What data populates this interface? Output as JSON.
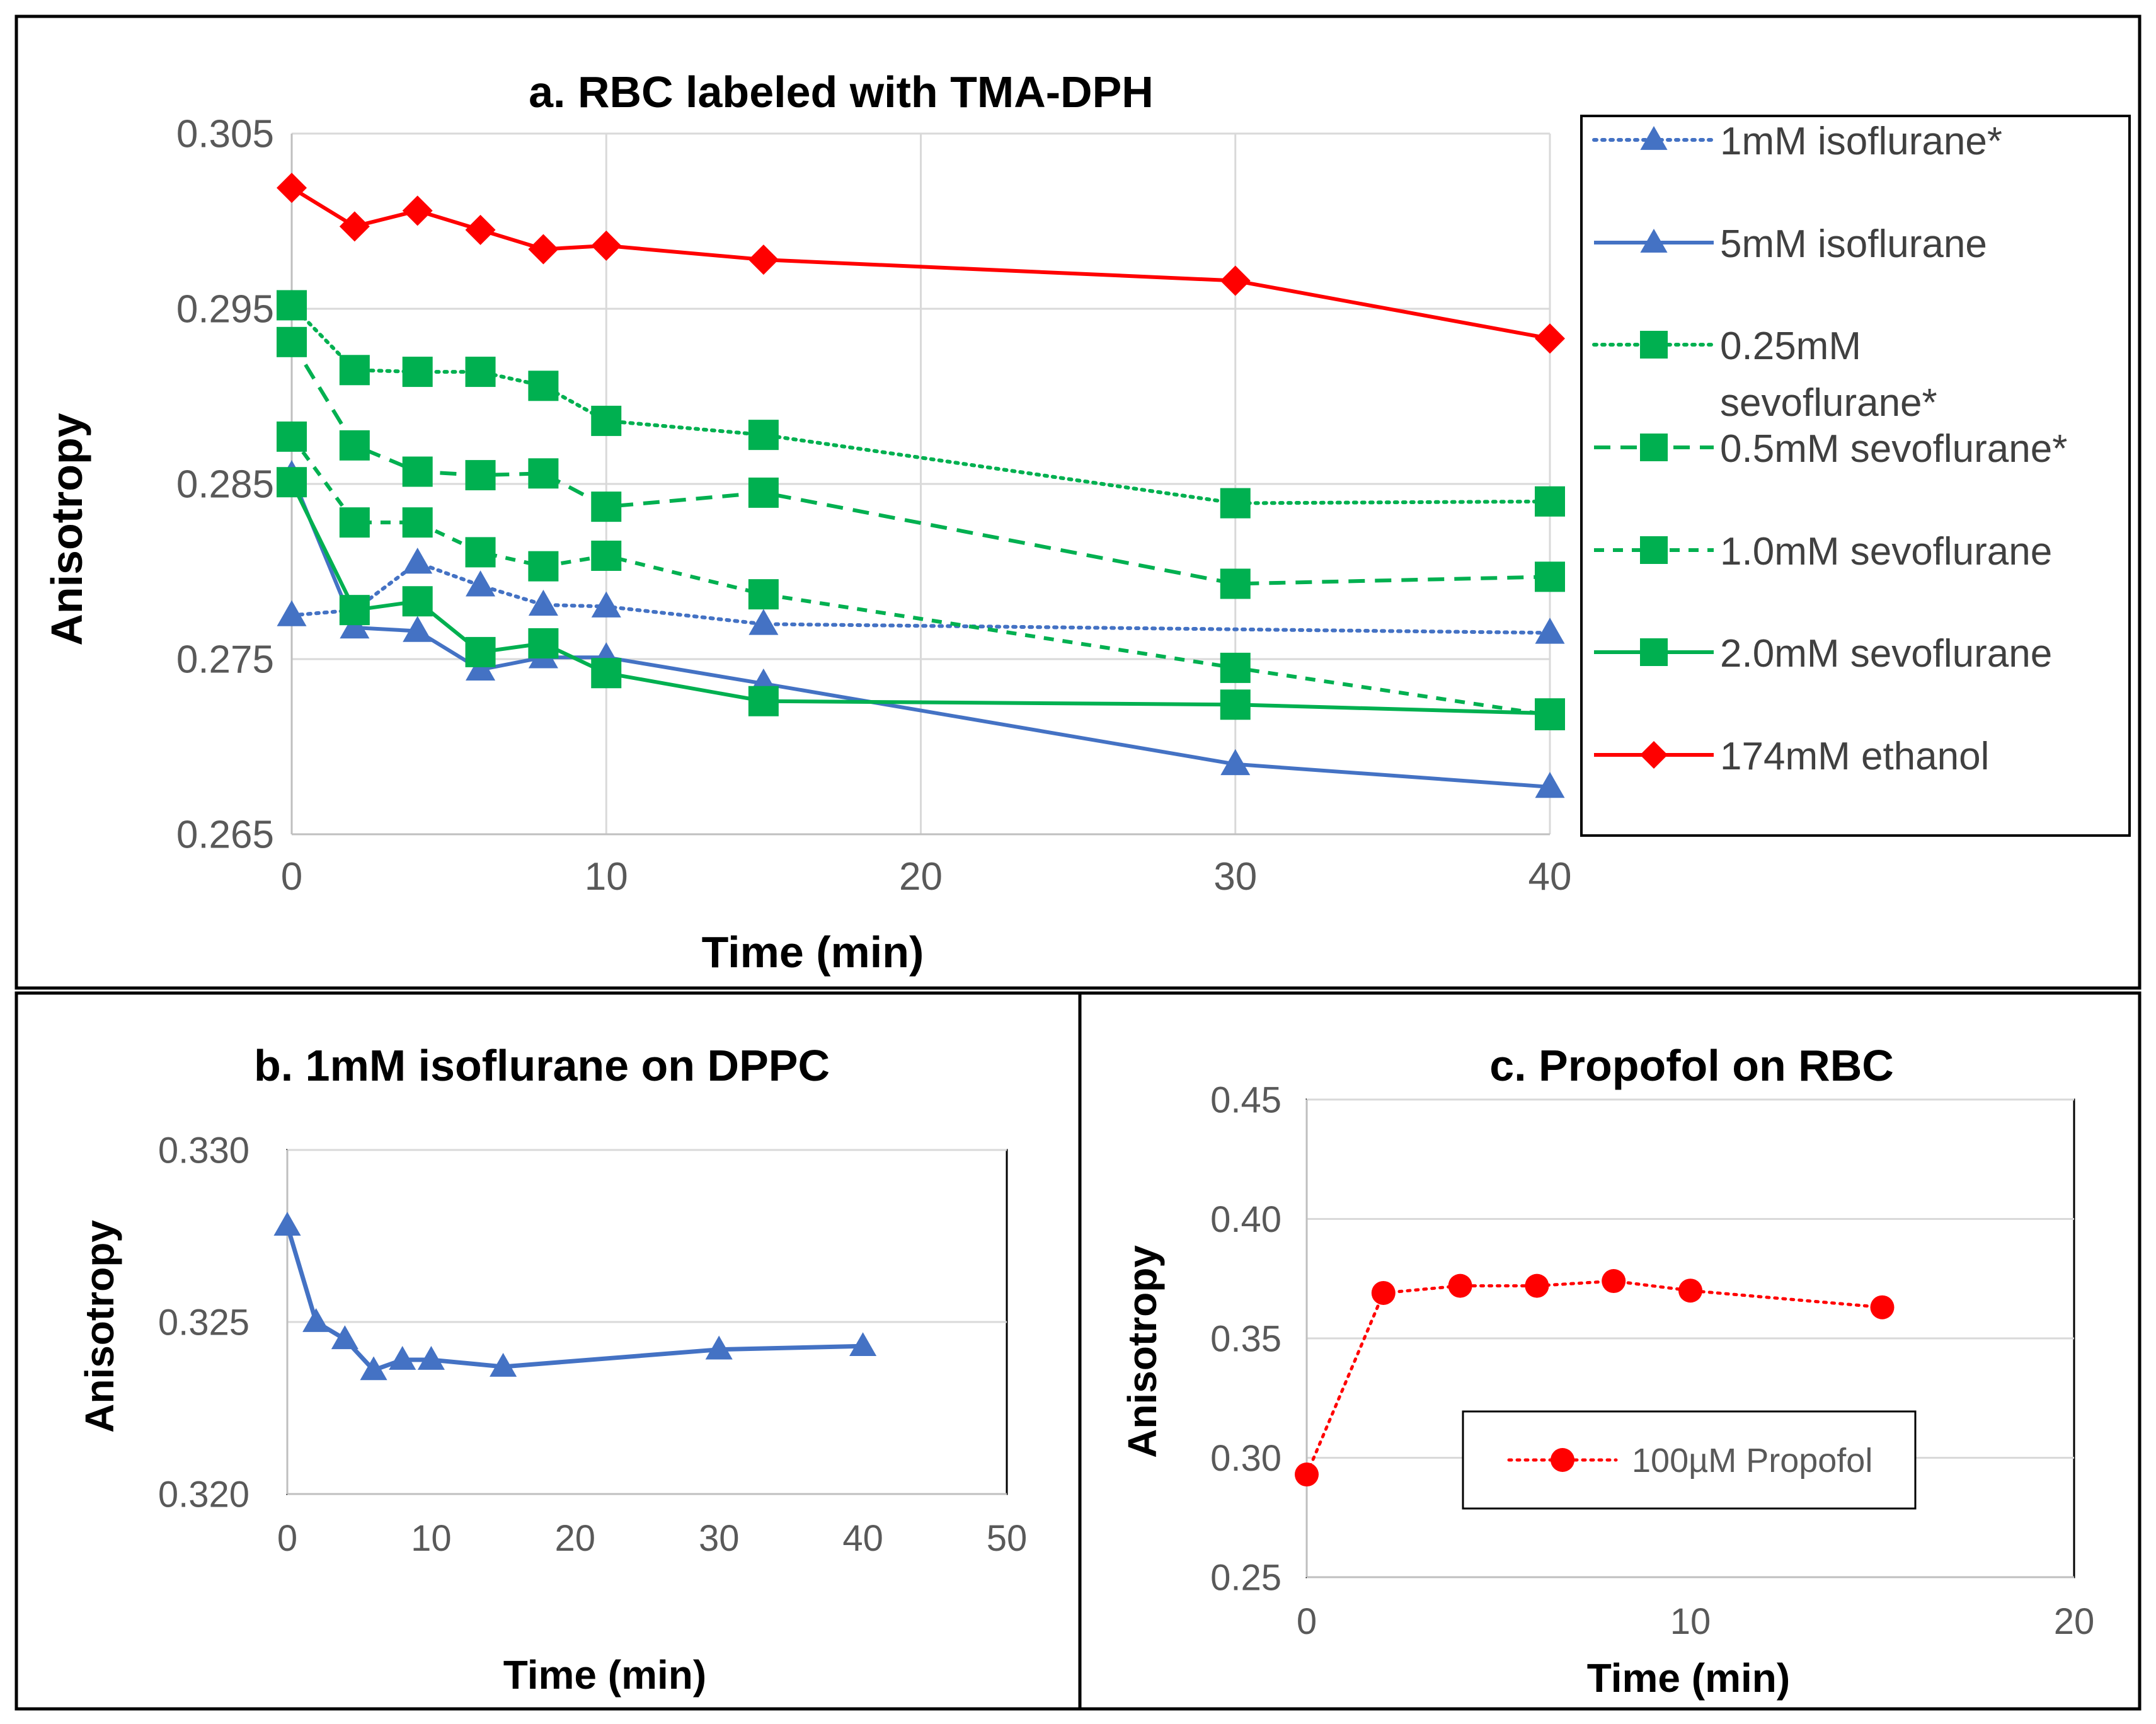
{
  "chart_data": [
    {
      "id": "a",
      "type": "line",
      "title": "a. RBC labeled with TMA-DPH",
      "xlabel": "Time (min)",
      "ylabel": "Anisotropy",
      "xlim": [
        0,
        40
      ],
      "ylim": [
        0.265,
        0.305
      ],
      "xticks": [
        0,
        10,
        20,
        30,
        40
      ],
      "xtick_labels": [
        "0",
        "10",
        "20",
        "30",
        "40"
      ],
      "yticks": [
        0.265,
        0.275,
        0.285,
        0.295,
        0.305
      ],
      "ytick_labels": [
        "0.265",
        "0.275",
        "0.285",
        "0.295",
        "0.305"
      ],
      "grid": true,
      "legend_position": "right",
      "series": [
        {
          "name": "1mM isoflurane*",
          "color": "#4472C4",
          "style": "dotted",
          "marker": "triangle",
          "x": [
            0,
            2,
            4,
            6,
            8,
            10,
            15,
            40
          ],
          "y": [
            0.2775,
            0.2778,
            0.2805,
            0.2792,
            0.2781,
            0.278,
            0.277,
            0.2765
          ]
        },
        {
          "name": "5mM isoflurane",
          "color": "#4472C4",
          "style": "solid",
          "marker": "triangle",
          "x": [
            0,
            2,
            4,
            6,
            8,
            10,
            15,
            30,
            40
          ],
          "y": [
            0.2855,
            0.2768,
            0.2766,
            0.2744,
            0.2751,
            0.2751,
            0.2736,
            0.269,
            0.2677
          ]
        },
        {
          "name": "0.25mM sevoflurane*",
          "color": "#00B050",
          "style": "dotted",
          "marker": "square",
          "x": [
            0,
            2,
            4,
            6,
            8,
            10,
            15,
            30,
            40
          ],
          "y": [
            0.2952,
            0.2915,
            0.2914,
            0.2914,
            0.2906,
            0.2886,
            0.2878,
            0.2839,
            0.284
          ]
        },
        {
          "name": "0.5mM sevoflurane*",
          "color": "#00B050",
          "style": "dashed",
          "marker": "square",
          "x": [
            0,
            2,
            4,
            6,
            8,
            10,
            15,
            30,
            40
          ],
          "y": [
            0.2931,
            0.2872,
            0.2857,
            0.2855,
            0.2856,
            0.2837,
            0.2845,
            0.2793,
            0.2797
          ]
        },
        {
          "name": "1.0mM sevoflurane",
          "color": "#00B050",
          "style": "dashed-short",
          "marker": "square",
          "x": [
            0,
            2,
            4,
            6,
            8,
            10,
            15,
            30,
            40
          ],
          "y": [
            0.2877,
            0.2828,
            0.2828,
            0.2811,
            0.2803,
            0.2809,
            0.2787,
            0.2745,
            0.2718
          ]
        },
        {
          "name": "2.0mM sevoflurane",
          "color": "#00B050",
          "style": "solid",
          "marker": "square",
          "x": [
            0,
            2,
            4,
            6,
            8,
            10,
            15,
            30,
            40
          ],
          "y": [
            0.2851,
            0.2778,
            0.2783,
            0.2754,
            0.2759,
            0.2742,
            0.2726,
            0.2724,
            0.2719
          ]
        },
        {
          "name": "174mM ethanol",
          "color": "#FF0000",
          "style": "solid",
          "marker": "diamond",
          "x": [
            0,
            2,
            4,
            6,
            8,
            10,
            15,
            30,
            40
          ],
          "y": [
            0.3019,
            0.2997,
            0.3006,
            0.2995,
            0.2984,
            0.2986,
            0.2978,
            0.2966,
            0.2933
          ]
        }
      ]
    },
    {
      "id": "b",
      "type": "line",
      "title": "b. 1mM isoflurane on DPPC",
      "xlabel": "Time (min)",
      "ylabel": "Anisotropy",
      "xlim": [
        0,
        50
      ],
      "ylim": [
        0.32,
        0.33
      ],
      "xticks": [
        0,
        10,
        20,
        30,
        40,
        50
      ],
      "xtick_labels": [
        "0",
        "10",
        "20",
        "30",
        "40",
        "50"
      ],
      "yticks": [
        0.32,
        0.325,
        0.33
      ],
      "ytick_labels": [
        "0.320",
        "0.325",
        "0.330"
      ],
      "grid": true,
      "series": [
        {
          "name": "1mM isoflurane",
          "color": "#4472C4",
          "style": "solid",
          "marker": "triangle",
          "x": [
            0,
            2,
            4,
            6,
            8,
            10,
            15,
            30,
            40
          ],
          "y": [
            0.3278,
            0.325,
            0.3245,
            0.3236,
            0.3239,
            0.3239,
            0.3237,
            0.3242,
            0.3243
          ]
        }
      ]
    },
    {
      "id": "c",
      "type": "line",
      "title": "c. Propofol on RBC",
      "xlabel": "Time (min)",
      "ylabel": "Anisotropy",
      "xlim": [
        0,
        20
      ],
      "ylim": [
        0.25,
        0.45
      ],
      "xticks": [
        0,
        10,
        20
      ],
      "xtick_labels": [
        "0",
        "10",
        "20"
      ],
      "yticks": [
        0.25,
        0.3,
        0.35,
        0.4,
        0.45
      ],
      "ytick_labels": [
        "0.25",
        "0.30",
        "0.35",
        "0.40",
        "0.45"
      ],
      "grid": true,
      "legend_position": "center",
      "series": [
        {
          "name": "100µM Propofol",
          "color": "#FF0000",
          "style": "dotted",
          "marker": "circle",
          "x": [
            0,
            2,
            4,
            6,
            8,
            10,
            15
          ],
          "y": [
            0.293,
            0.369,
            0.372,
            0.372,
            0.374,
            0.37,
            0.363
          ]
        }
      ]
    }
  ]
}
